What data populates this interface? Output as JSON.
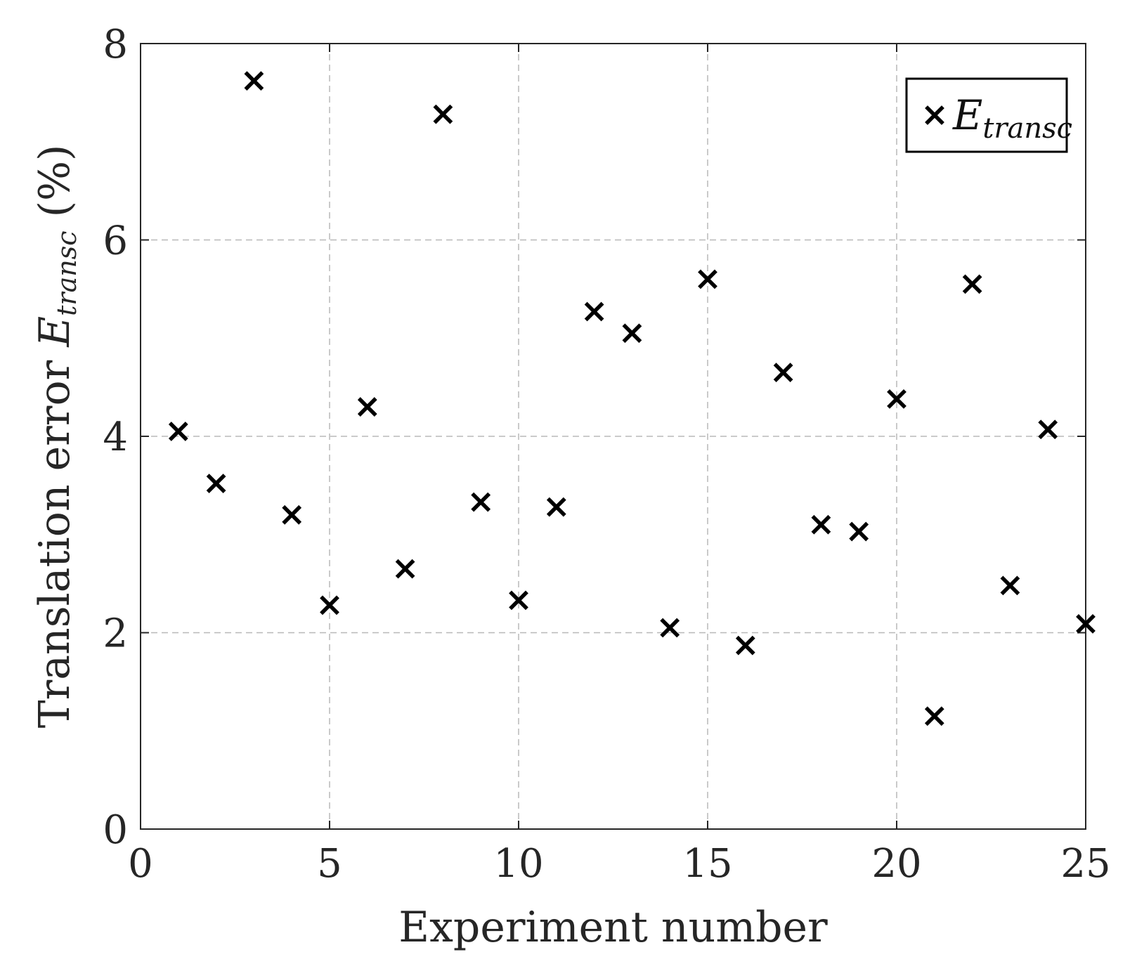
{
  "chart_data": {
    "type": "scatter",
    "xlabel": "Experiment number",
    "ylabel": {
      "prefix": "Translation error ",
      "var_main": "E",
      "var_sub": "transc",
      "suffix": " (%)"
    },
    "legend": {
      "entries": [
        {
          "main": "E",
          "sub": "transc"
        }
      ],
      "position": "top-right"
    },
    "xlim": [
      0,
      25
    ],
    "ylim": [
      0,
      8
    ],
    "xticks": [
      0,
      5,
      10,
      15,
      20,
      25
    ],
    "yticks": [
      0,
      2,
      4,
      6,
      8
    ],
    "xtick_labels": [
      "0",
      "5",
      "10",
      "15",
      "20",
      "25"
    ],
    "ytick_labels": [
      "0",
      "2",
      "4",
      "6",
      "8"
    ],
    "grid": true,
    "marker": "x",
    "colors": {
      "marker": "#000000",
      "grid": "#b8b8b8",
      "axis": "#262626"
    },
    "series": [
      {
        "x": [
          1,
          2,
          3,
          4,
          5,
          6,
          7,
          8,
          9,
          10,
          11,
          12,
          13,
          14,
          15,
          16,
          17,
          18,
          19,
          20,
          21,
          22,
          23,
          24,
          25
        ],
        "y": [
          4.05,
          3.52,
          7.62,
          3.2,
          2.28,
          4.3,
          2.65,
          7.28,
          3.33,
          2.33,
          3.28,
          5.27,
          5.05,
          2.05,
          5.6,
          1.87,
          4.65,
          3.1,
          3.03,
          4.38,
          1.15,
          5.55,
          2.48,
          4.07,
          2.09
        ]
      }
    ]
  }
}
